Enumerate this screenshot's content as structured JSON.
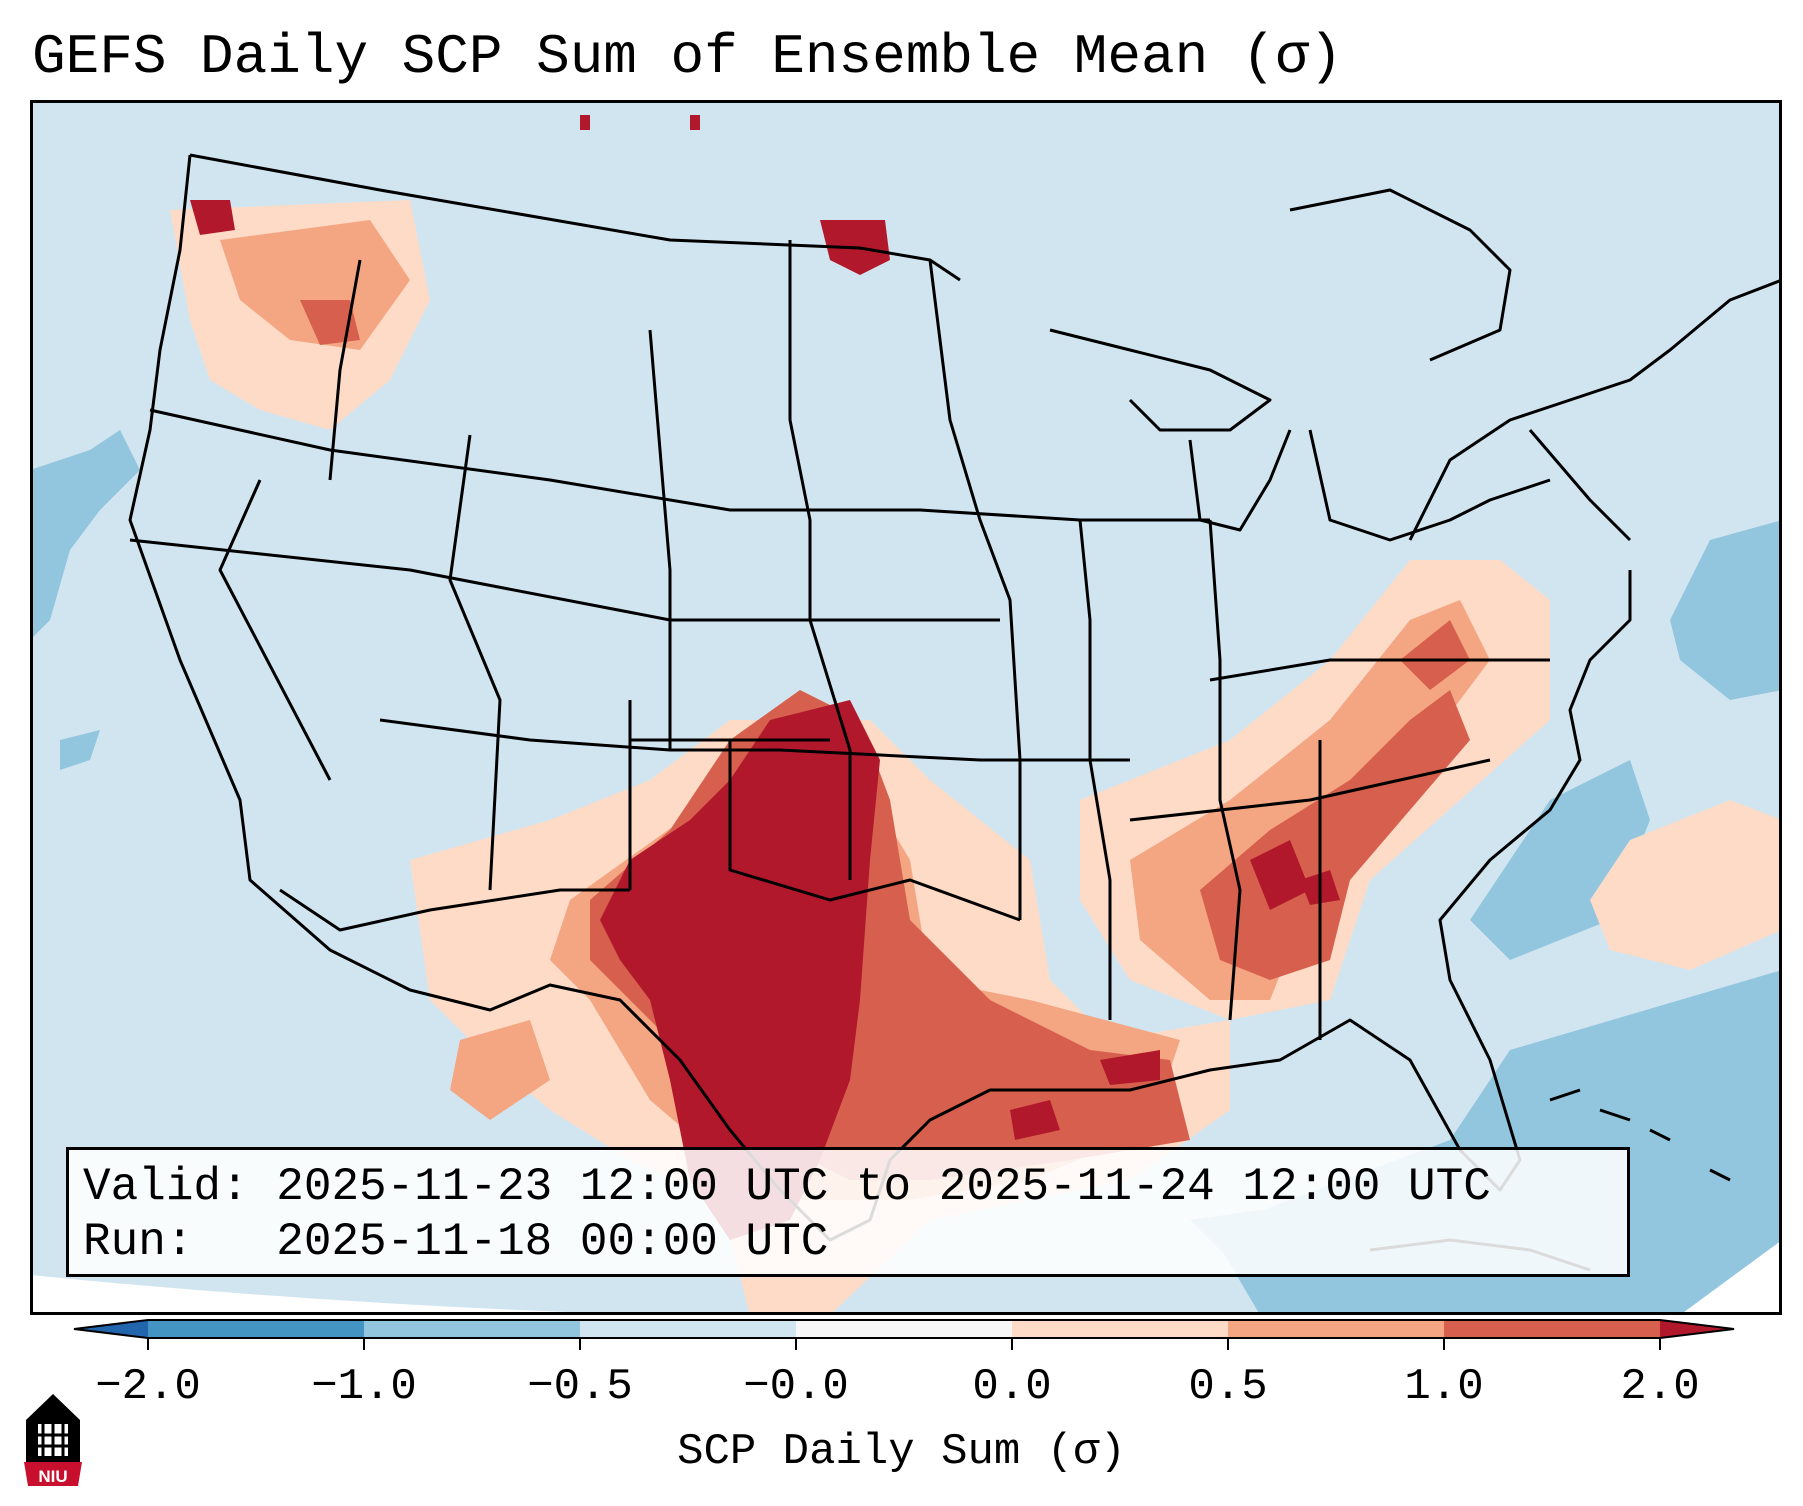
{
  "title": "GEFS Daily SCP Sum of Ensemble Mean (σ)",
  "info": {
    "valid_line": "Valid: 2025-11-23 12:00 UTC to 2025-11-24 12:00 UTC",
    "run_line": "Run:   2025-11-18 00:00 UTC"
  },
  "colorbar": {
    "label": "SCP Daily Sum (σ)",
    "ticks": [
      "−2.0",
      "−1.0",
      "−0.5",
      "−0.0",
      "0.0",
      "0.5",
      "1.0",
      "2.0"
    ],
    "bins": [
      {
        "range": "< -2.0",
        "color": "#2166ac"
      },
      {
        "range": "-2.0 to -1.0",
        "color": "#4393c3"
      },
      {
        "range": "-1.0 to -0.5",
        "color": "#92c5de"
      },
      {
        "range": "-0.5 to -0.0",
        "color": "#d1e5f0"
      },
      {
        "range": "-0.0 to 0.0",
        "color": "#f7f7f7"
      },
      {
        "range": "0.0 to 0.5",
        "color": "#fddbc7"
      },
      {
        "range": "0.5 to 1.0",
        "color": "#f4a582"
      },
      {
        "range": "1.0 to 2.0",
        "color": "#d6604d"
      },
      {
        "range": "> 2.0",
        "color": "#b2182b"
      }
    ]
  },
  "map": {
    "region": "Contiguous United States",
    "background_color": "#d1e5f0",
    "highlight_regions": [
      {
        "name": "Southern Plains / West Texas",
        "level": "> 2.0"
      },
      {
        "name": "Lower Mississippi Valley / Alabama",
        "level": "1.0 to 2.0"
      },
      {
        "name": "Ohio Valley / Appalachians",
        "level": "0.5 to 1.0"
      },
      {
        "name": "Pacific Northwest",
        "level": "0.0 to 0.5"
      }
    ]
  },
  "logo": {
    "text": "NIU"
  }
}
